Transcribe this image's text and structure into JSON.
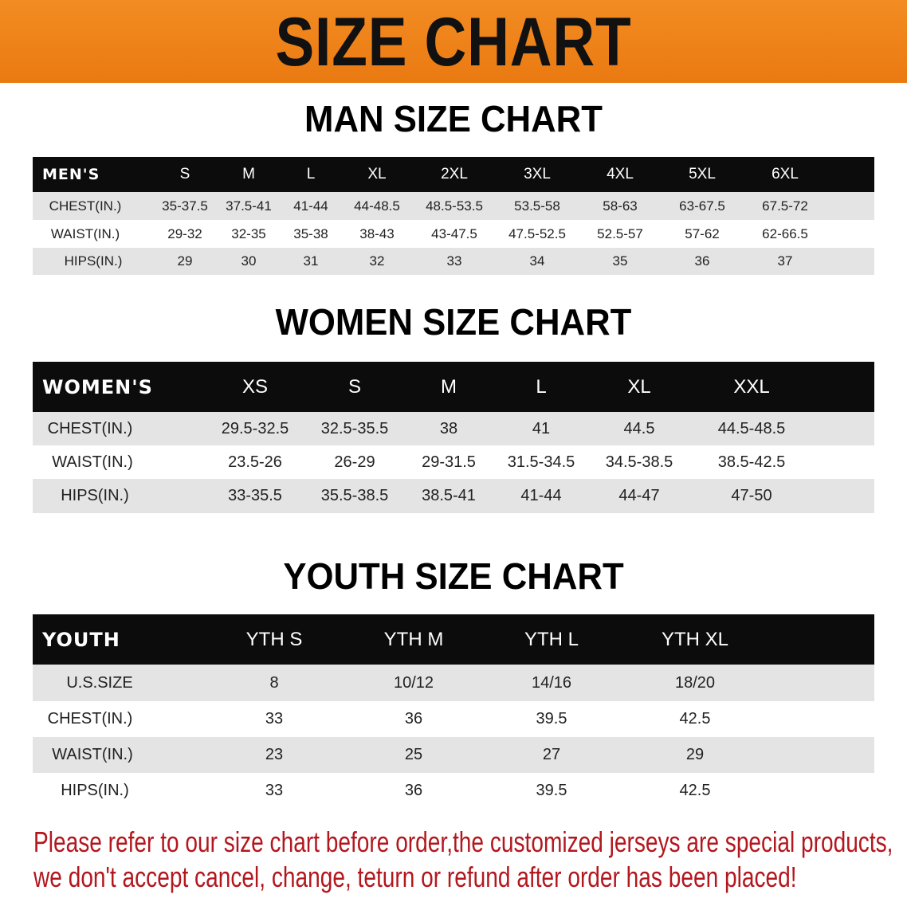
{
  "banner": {
    "title": "SIZE CHART",
    "color": "#f08420"
  },
  "men": {
    "title": "MAN SIZE CHART",
    "header": [
      "MEN'S",
      "S",
      "M",
      "L",
      "XL",
      "2XL",
      "3XL",
      "4XL",
      "5XL",
      "6XL"
    ],
    "rows": [
      [
        "CHEST(IN.)",
        "35-37.5",
        "37.5-41",
        "41-44",
        "44-48.5",
        "48.5-53.5",
        "53.5-58",
        "58-63",
        "63-67.5",
        "67.5-72"
      ],
      [
        "WAIST(IN.)",
        "29-32",
        "32-35",
        "35-38",
        "38-43",
        "43-47.5",
        "47.5-52.5",
        "52.5-57",
        "57-62",
        "62-66.5"
      ],
      [
        "HIPS(IN.)",
        "29",
        "30",
        "31",
        "32",
        "33",
        "34",
        "35",
        "36",
        "37"
      ]
    ]
  },
  "women": {
    "title": "WOMEN SIZE CHART",
    "header": [
      "WOMEN'S",
      "XS",
      "S",
      "M",
      "L",
      "XL",
      "XXL"
    ],
    "rows": [
      [
        "CHEST(IN.)",
        "29.5-32.5",
        "32.5-35.5",
        "38",
        "41",
        "44.5",
        "44.5-48.5"
      ],
      [
        "WAIST(IN.)",
        "23.5-26",
        "26-29",
        "29-31.5",
        "31.5-34.5",
        "34.5-38.5",
        "38.5-42.5"
      ],
      [
        "HIPS(IN.)",
        "33-35.5",
        "35.5-38.5",
        "38.5-41",
        "41-44",
        "44-47",
        "47-50"
      ]
    ]
  },
  "youth": {
    "title": "YOUTH SIZE CHART",
    "header": [
      "YOUTH",
      "YTH S",
      "YTH M",
      "YTH L",
      "YTH XL"
    ],
    "rows": [
      [
        "U.S.SIZE",
        "8",
        "10/12",
        "14/16",
        "18/20"
      ],
      [
        "CHEST(IN.)",
        "33",
        "36",
        "39.5",
        "42.5"
      ],
      [
        "WAIST(IN.)",
        "23",
        "25",
        "27",
        "29"
      ],
      [
        "HIPS(IN.)",
        "33",
        "36",
        "39.5",
        "42.5"
      ]
    ]
  },
  "footer": {
    "line1": "Please refer to our size chart before order,the customized jerseys are special products,",
    "line2": "we don't accept cancel, change, teturn or refund after order has been placed!",
    "color": "#b3171e"
  }
}
